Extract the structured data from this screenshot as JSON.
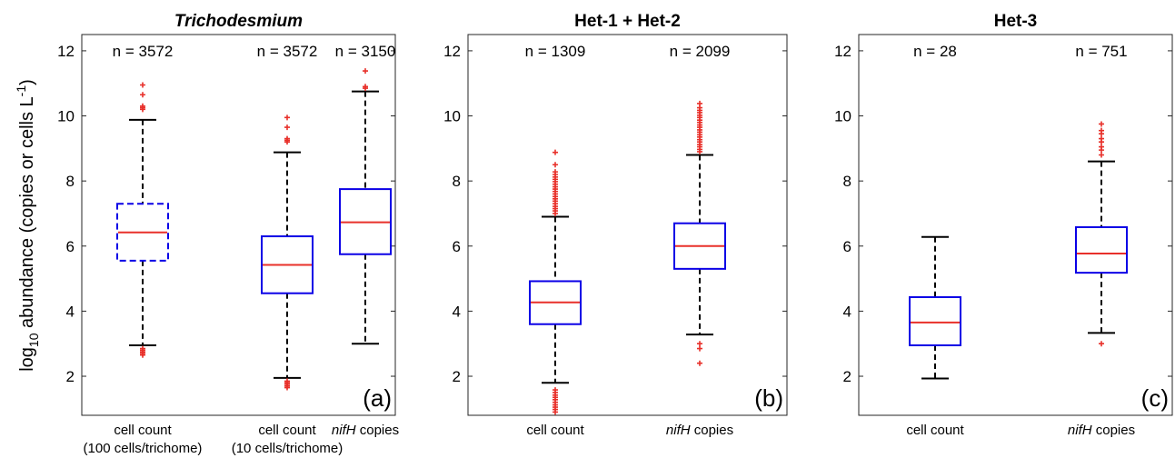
{
  "figure": {
    "ylabel_pre": "log",
    "ylabel_sub": "10",
    "ylabel_mid": " abundance (copies or cells L",
    "ylabel_sup": "-1",
    "ylabel_post": ")"
  },
  "chart_data": [
    {
      "type": "box",
      "title": "Trichodesmium",
      "title_italic": true,
      "panel_label": "(a)",
      "ylim": [
        0.8,
        12.5
      ],
      "yticks": [
        2,
        4,
        6,
        8,
        10,
        12
      ],
      "grid": false,
      "categories": [
        {
          "lines": [
            {
              "text": "cell count",
              "italic": false
            },
            {
              "text": "(100 cells/trichome)",
              "italic": false
            }
          ]
        },
        {
          "lines": [
            {
              "text": "cell count",
              "italic": false
            },
            {
              "text": "(10 cells/trichome)",
              "italic": false
            }
          ]
        },
        {
          "parts": [
            {
              "text": "nifH",
              "italic": true
            },
            {
              "text": " copies",
              "italic": false
            }
          ]
        }
      ],
      "boxes": [
        {
          "n_label": "n = 3572",
          "whisker_low": 2.95,
          "q1": 5.55,
          "median": 6.42,
          "q3": 7.3,
          "whisker_high": 9.88,
          "dashed": true,
          "outliers": [
            2.65,
            2.7,
            2.75,
            2.8,
            2.85,
            10.2,
            10.25,
            10.3,
            10.65,
            10.95
          ]
        },
        {
          "n_label": "n = 3572",
          "whisker_low": 1.95,
          "q1": 4.55,
          "median": 5.42,
          "q3": 6.3,
          "whisker_high": 8.88,
          "dashed": false,
          "outliers": [
            1.65,
            1.7,
            1.75,
            1.8,
            1.85,
            9.2,
            9.25,
            9.3,
            9.65,
            9.95
          ]
        },
        {
          "n_label": "n = 3150",
          "whisker_low": 3.0,
          "q1": 5.75,
          "median": 6.73,
          "q3": 7.75,
          "whisker_high": 10.75,
          "dashed": false,
          "outliers": [
            10.85,
            10.9,
            11.38
          ]
        }
      ]
    },
    {
      "type": "box",
      "title": "Het-1 + Het-2",
      "title_italic": false,
      "panel_label": "(b)",
      "ylim": [
        0.8,
        12.5
      ],
      "yticks": [
        2,
        4,
        6,
        8,
        10,
        12
      ],
      "grid": false,
      "categories": [
        {
          "lines": [
            {
              "text": "cell count",
              "italic": false
            }
          ]
        },
        {
          "parts": [
            {
              "text": "nifH",
              "italic": true
            },
            {
              "text": " copies",
              "italic": false
            }
          ]
        }
      ],
      "boxes": [
        {
          "n_label": "n = 1309",
          "whisker_low": 1.8,
          "q1": 3.6,
          "median": 4.27,
          "q3": 4.92,
          "whisker_high": 6.9,
          "dashed": false,
          "outliers": [
            0.9,
            0.98,
            1.05,
            1.12,
            1.2,
            1.28,
            1.35,
            1.42,
            1.5,
            1.58,
            7.0,
            7.08,
            7.15,
            7.22,
            7.3,
            7.38,
            7.45,
            7.52,
            7.6,
            7.68,
            7.75,
            7.82,
            7.9,
            7.98,
            8.05,
            8.12,
            8.2,
            8.28,
            8.5,
            8.88
          ]
        },
        {
          "n_label": "n = 2099",
          "whisker_low": 3.28,
          "q1": 5.3,
          "median": 6.0,
          "q3": 6.7,
          "whisker_high": 8.8,
          "dashed": false,
          "outliers": [
            2.4,
            2.85,
            3.0,
            8.9,
            8.97,
            9.05,
            9.12,
            9.2,
            9.27,
            9.35,
            9.42,
            9.5,
            9.57,
            9.65,
            9.72,
            9.8,
            9.87,
            9.95,
            10.02,
            10.1,
            10.17,
            10.25,
            10.38
          ]
        }
      ]
    },
    {
      "type": "box",
      "title": "Het-3",
      "title_italic": false,
      "panel_label": "(c)",
      "ylim": [
        0.8,
        12.5
      ],
      "yticks": [
        2,
        4,
        6,
        8,
        10,
        12
      ],
      "grid": false,
      "categories": [
        {
          "lines": [
            {
              "text": "cell count",
              "italic": false
            }
          ]
        },
        {
          "parts": [
            {
              "text": "nifH",
              "italic": true
            },
            {
              "text": " copies",
              "italic": false
            }
          ]
        }
      ],
      "boxes": [
        {
          "n_label": "n = 28",
          "whisker_low": 1.93,
          "q1": 2.95,
          "median": 3.65,
          "q3": 4.43,
          "whisker_high": 6.28,
          "dashed": false,
          "outliers": []
        },
        {
          "n_label": "n = 751",
          "whisker_low": 3.33,
          "q1": 5.18,
          "median": 5.77,
          "q3": 6.58,
          "whisker_high": 8.6,
          "dashed": false,
          "outliers": [
            3.0,
            8.8,
            8.95,
            9.05,
            9.2,
            9.3,
            9.45,
            9.55,
            9.75
          ]
        }
      ]
    }
  ]
}
